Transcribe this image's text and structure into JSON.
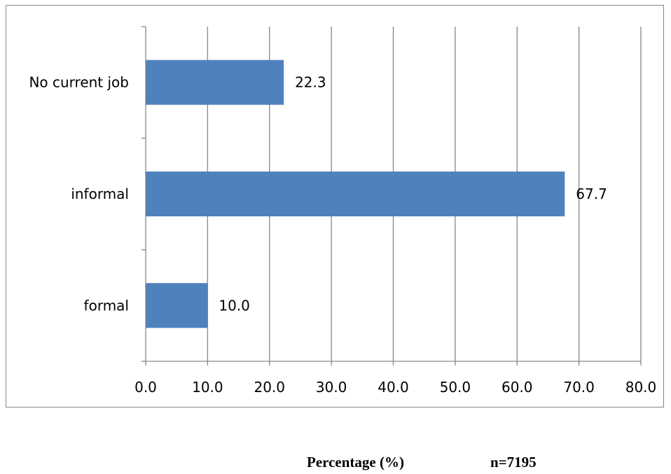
{
  "chart_data": {
    "type": "bar",
    "orientation": "horizontal",
    "categories": [
      "No current job",
      "informal",
      "formal"
    ],
    "values": [
      22.3,
      67.7,
      10.0
    ],
    "value_labels": [
      "22.3",
      "67.7",
      "10.0"
    ],
    "xlim": [
      0,
      80
    ],
    "xticks": [
      "0.0",
      "10.0",
      "20.0",
      "30.0",
      "40.0",
      "50.0",
      "60.0",
      "70.0",
      "80.0"
    ],
    "xlabel": "Percentage (%)",
    "note": "n=7195",
    "grid": "vertical",
    "bar_color": "#4F81BD"
  }
}
